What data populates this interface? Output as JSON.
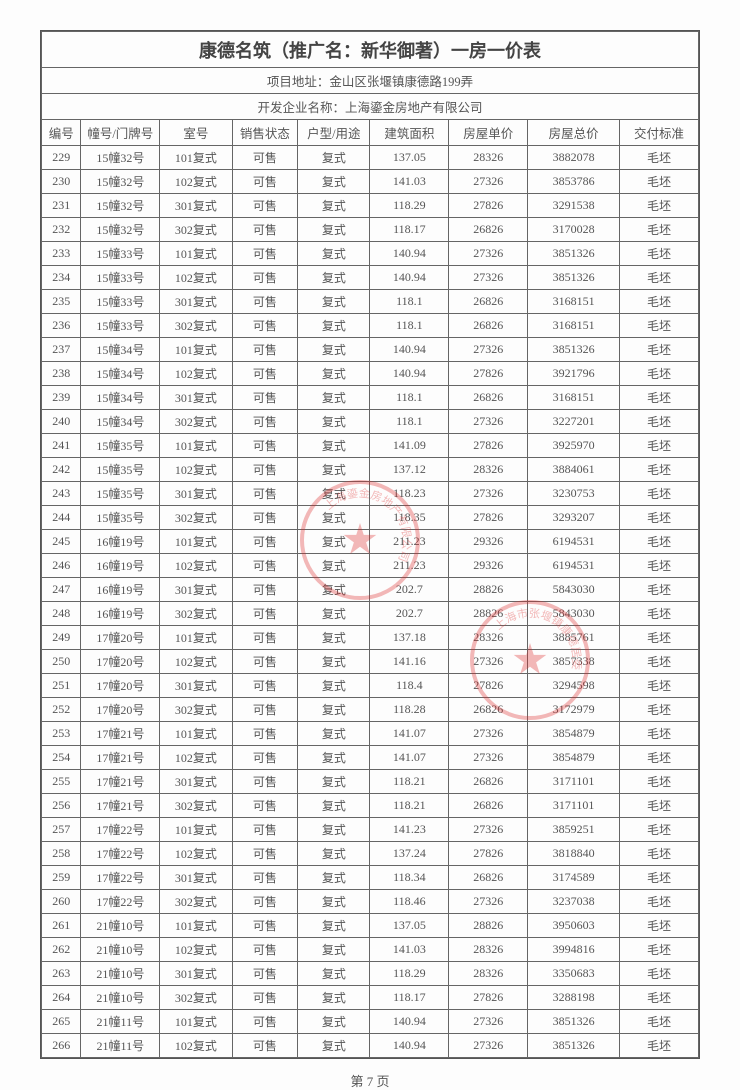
{
  "title": "康德名筑（推广名：新华御著）一房一价表",
  "address_label": "项目地址：金山区张堰镇康德路199弄",
  "dev_label": "开发企业名称：上海鎏金房地产有限公司",
  "page_label": "第 7 页",
  "columns": [
    "编号",
    "幢号/门牌号",
    "室号",
    "销售状态",
    "户型/用途",
    "建筑面积",
    "房屋单价",
    "房屋总价",
    "交付标准"
  ],
  "rows": [
    [
      "229",
      "15幢32号",
      "101复式",
      "可售",
      "复式",
      "137.05",
      "28326",
      "3882078",
      "毛坯"
    ],
    [
      "230",
      "15幢32号",
      "102复式",
      "可售",
      "复式",
      "141.03",
      "27326",
      "3853786",
      "毛坯"
    ],
    [
      "231",
      "15幢32号",
      "301复式",
      "可售",
      "复式",
      "118.29",
      "27826",
      "3291538",
      "毛坯"
    ],
    [
      "232",
      "15幢32号",
      "302复式",
      "可售",
      "复式",
      "118.17",
      "26826",
      "3170028",
      "毛坯"
    ],
    [
      "233",
      "15幢33号",
      "101复式",
      "可售",
      "复式",
      "140.94",
      "27326",
      "3851326",
      "毛坯"
    ],
    [
      "234",
      "15幢33号",
      "102复式",
      "可售",
      "复式",
      "140.94",
      "27326",
      "3851326",
      "毛坯"
    ],
    [
      "235",
      "15幢33号",
      "301复式",
      "可售",
      "复式",
      "118.1",
      "26826",
      "3168151",
      "毛坯"
    ],
    [
      "236",
      "15幢33号",
      "302复式",
      "可售",
      "复式",
      "118.1",
      "26826",
      "3168151",
      "毛坯"
    ],
    [
      "237",
      "15幢34号",
      "101复式",
      "可售",
      "复式",
      "140.94",
      "27326",
      "3851326",
      "毛坯"
    ],
    [
      "238",
      "15幢34号",
      "102复式",
      "可售",
      "复式",
      "140.94",
      "27826",
      "3921796",
      "毛坯"
    ],
    [
      "239",
      "15幢34号",
      "301复式",
      "可售",
      "复式",
      "118.1",
      "26826",
      "3168151",
      "毛坯"
    ],
    [
      "240",
      "15幢34号",
      "302复式",
      "可售",
      "复式",
      "118.1",
      "27326",
      "3227201",
      "毛坯"
    ],
    [
      "241",
      "15幢35号",
      "101复式",
      "可售",
      "复式",
      "141.09",
      "27826",
      "3925970",
      "毛坯"
    ],
    [
      "242",
      "15幢35号",
      "102复式",
      "可售",
      "复式",
      "137.12",
      "28326",
      "3884061",
      "毛坯"
    ],
    [
      "243",
      "15幢35号",
      "301复式",
      "可售",
      "复式",
      "118.23",
      "27326",
      "3230753",
      "毛坯"
    ],
    [
      "244",
      "15幢35号",
      "302复式",
      "可售",
      "复式",
      "118.35",
      "27826",
      "3293207",
      "毛坯"
    ],
    [
      "245",
      "16幢19号",
      "101复式",
      "可售",
      "复式",
      "211.23",
      "29326",
      "6194531",
      "毛坯"
    ],
    [
      "246",
      "16幢19号",
      "102复式",
      "可售",
      "复式",
      "211.23",
      "29326",
      "6194531",
      "毛坯"
    ],
    [
      "247",
      "16幢19号",
      "301复式",
      "可售",
      "复式",
      "202.7",
      "28826",
      "5843030",
      "毛坯"
    ],
    [
      "248",
      "16幢19号",
      "302复式",
      "可售",
      "复式",
      "202.7",
      "28826",
      "5843030",
      "毛坯"
    ],
    [
      "249",
      "17幢20号",
      "101复式",
      "可售",
      "复式",
      "137.18",
      "28326",
      "3885761",
      "毛坯"
    ],
    [
      "250",
      "17幢20号",
      "102复式",
      "可售",
      "复式",
      "141.16",
      "27326",
      "3857338",
      "毛坯"
    ],
    [
      "251",
      "17幢20号",
      "301复式",
      "可售",
      "复式",
      "118.4",
      "27826",
      "3294598",
      "毛坯"
    ],
    [
      "252",
      "17幢20号",
      "302复式",
      "可售",
      "复式",
      "118.28",
      "26826",
      "3172979",
      "毛坯"
    ],
    [
      "253",
      "17幢21号",
      "101复式",
      "可售",
      "复式",
      "141.07",
      "27326",
      "3854879",
      "毛坯"
    ],
    [
      "254",
      "17幢21号",
      "102复式",
      "可售",
      "复式",
      "141.07",
      "27326",
      "3854879",
      "毛坯"
    ],
    [
      "255",
      "17幢21号",
      "301复式",
      "可售",
      "复式",
      "118.21",
      "26826",
      "3171101",
      "毛坯"
    ],
    [
      "256",
      "17幢21号",
      "302复式",
      "可售",
      "复式",
      "118.21",
      "26826",
      "3171101",
      "毛坯"
    ],
    [
      "257",
      "17幢22号",
      "101复式",
      "可售",
      "复式",
      "141.23",
      "27326",
      "3859251",
      "毛坯"
    ],
    [
      "258",
      "17幢22号",
      "102复式",
      "可售",
      "复式",
      "137.24",
      "27826",
      "3818840",
      "毛坯"
    ],
    [
      "259",
      "17幢22号",
      "301复式",
      "可售",
      "复式",
      "118.34",
      "26826",
      "3174589",
      "毛坯"
    ],
    [
      "260",
      "17幢22号",
      "302复式",
      "可售",
      "复式",
      "118.46",
      "27326",
      "3237038",
      "毛坯"
    ],
    [
      "261",
      "21幢10号",
      "101复式",
      "可售",
      "复式",
      "137.05",
      "28826",
      "3950603",
      "毛坯"
    ],
    [
      "262",
      "21幢10号",
      "102复式",
      "可售",
      "复式",
      "141.03",
      "28326",
      "3994816",
      "毛坯"
    ],
    [
      "263",
      "21幢10号",
      "301复式",
      "可售",
      "复式",
      "118.29",
      "28326",
      "3350683",
      "毛坯"
    ],
    [
      "264",
      "21幢10号",
      "302复式",
      "可售",
      "复式",
      "118.17",
      "27826",
      "3288198",
      "毛坯"
    ],
    [
      "265",
      "21幢11号",
      "101复式",
      "可售",
      "复式",
      "140.94",
      "27326",
      "3851326",
      "毛坯"
    ],
    [
      "266",
      "21幢11号",
      "102复式",
      "可售",
      "复式",
      "140.94",
      "27326",
      "3851326",
      "毛坯"
    ]
  ],
  "stamp1_text": "上海鎏金房地产有限公司",
  "stamp2_text": "上海市张堰镇康德居委"
}
